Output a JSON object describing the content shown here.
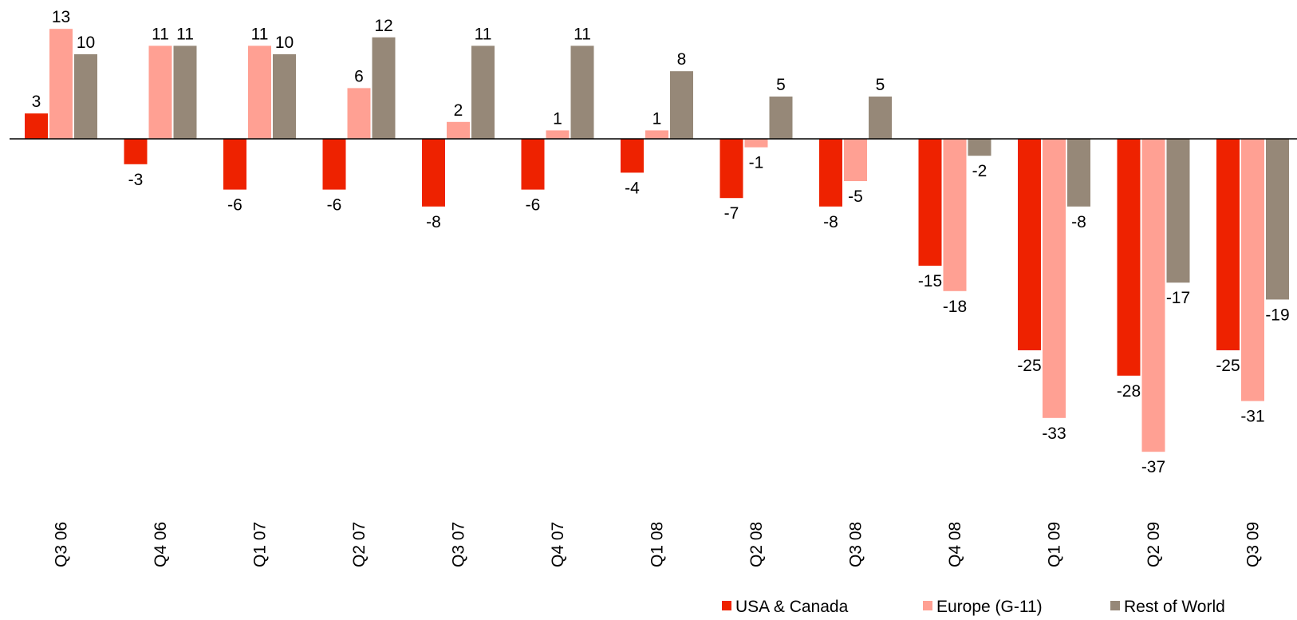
{
  "chart_data": {
    "type": "bar",
    "categories": [
      "Q3 06",
      "Q4 06",
      "Q1 07",
      "Q2 07",
      "Q3 07",
      "Q4 07",
      "Q1 08",
      "Q2 08",
      "Q3 08",
      "Q4 08",
      "Q1 09",
      "Q2 09",
      "Q3 09"
    ],
    "series": [
      {
        "name": "USA & Canada",
        "color": "#ee2200",
        "values": [
          3,
          -3,
          -6,
          -6,
          -8,
          -6,
          -4,
          -7,
          -8,
          -15,
          -25,
          -28,
          -25
        ]
      },
      {
        "name": "Europe (G-11)",
        "color": "#ffa093",
        "values": [
          13,
          11,
          11,
          6,
          2,
          1,
          1,
          -1,
          -5,
          -18,
          -33,
          -37,
          -31
        ]
      },
      {
        "name": "Rest of World",
        "color": "#968878",
        "values": [
          10,
          11,
          10,
          12,
          11,
          11,
          8,
          5,
          5,
          -2,
          -8,
          -17,
          -19
        ]
      }
    ],
    "legend": "bottom-right"
  }
}
